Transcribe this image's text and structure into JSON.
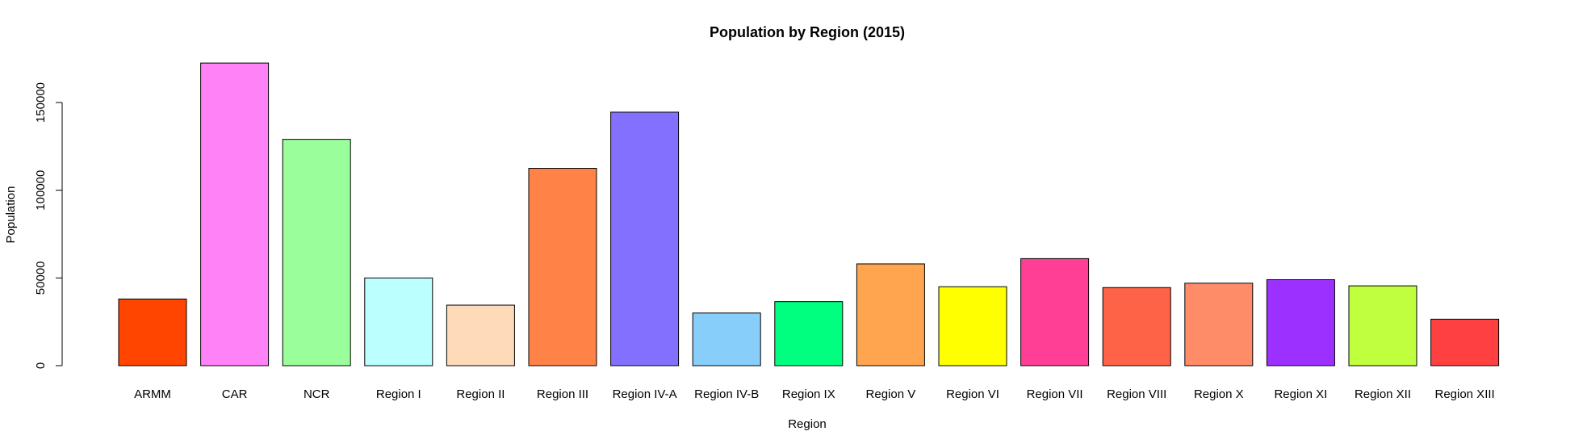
{
  "chart_data": {
    "type": "bar",
    "title": "Population by Region (2015)",
    "xlabel": "Region",
    "ylabel": "Population",
    "ylim": [
      0,
      180000
    ],
    "yticks": [
      0,
      50000,
      100000,
      150000
    ],
    "ytick_labels": [
      "0",
      "50000",
      "100000",
      "150000"
    ],
    "grid": false,
    "categories": [
      "ARMM",
      "CAR",
      "NCR",
      "Region I",
      "Region II",
      "Region III",
      "Region IV-A",
      "Region IV-B",
      "Region IX",
      "Region V",
      "Region VI",
      "Region VII",
      "Region VIII",
      "Region X",
      "Region XI",
      "Region XII",
      "Region XIII"
    ],
    "values": [
      38000,
      172500,
      129000,
      50000,
      34500,
      112500,
      144500,
      30000,
      36500,
      58000,
      45000,
      61000,
      44500,
      47000,
      49000,
      45500,
      26500
    ],
    "colors": [
      "#ff4500",
      "#ff82f7",
      "#9aff9a",
      "#bbffff",
      "#ffdab9",
      "#ff8247",
      "#8470ff",
      "#87cefa",
      "#00ff7f",
      "#ffa54f",
      "#ffff00",
      "#ff3e96",
      "#ff6347",
      "#ff8c69",
      "#9b30ff",
      "#c0ff3e",
      "#ff4040"
    ]
  }
}
